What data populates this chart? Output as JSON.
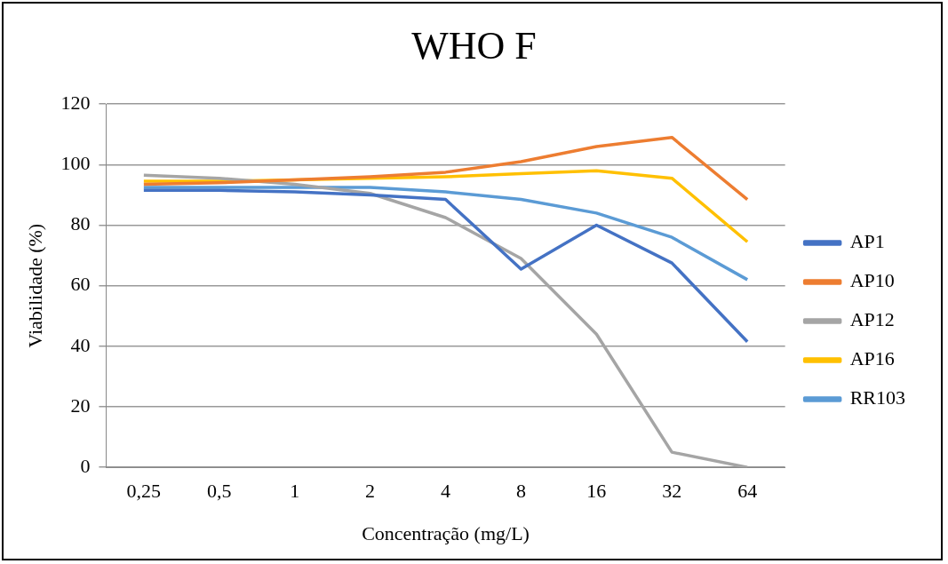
{
  "chart_data": {
    "type": "line",
    "title": "WHO F",
    "xlabel": "Concentração (mg/L)",
    "ylabel": "Viabilidade (%)",
    "categories": [
      "0,25",
      "0,5",
      "1",
      "2",
      "4",
      "8",
      "16",
      "32",
      "64"
    ],
    "series": [
      {
        "name": "AP1",
        "color": "#4472c4",
        "values": [
          91.5,
          91.5,
          91,
          90,
          88.5,
          65.5,
          80,
          67.5,
          41.5
        ]
      },
      {
        "name": "AP10",
        "color": "#ed7d31",
        "values": [
          93.5,
          94,
          95,
          96,
          97.5,
          101,
          106,
          109,
          88.5
        ]
      },
      {
        "name": "AP12",
        "color": "#a5a5a5",
        "values": [
          96.5,
          95.5,
          93.5,
          90.5,
          82.5,
          69,
          44,
          5,
          0
        ]
      },
      {
        "name": "AP16",
        "color": "#ffc000",
        "values": [
          94.5,
          94.5,
          95,
          95.5,
          96,
          97,
          98,
          95.5,
          74.5
        ]
      },
      {
        "name": "RR103",
        "color": "#5b9bd5",
        "values": [
          92.5,
          92.5,
          92.5,
          92.5,
          91,
          88.5,
          84,
          76,
          62
        ]
      }
    ],
    "ylim": [
      0,
      120
    ],
    "yticks": [
      0,
      20,
      40,
      60,
      80,
      100,
      120
    ],
    "grid": "y",
    "legend": "right",
    "marker": "none",
    "line_style": "solid"
  }
}
